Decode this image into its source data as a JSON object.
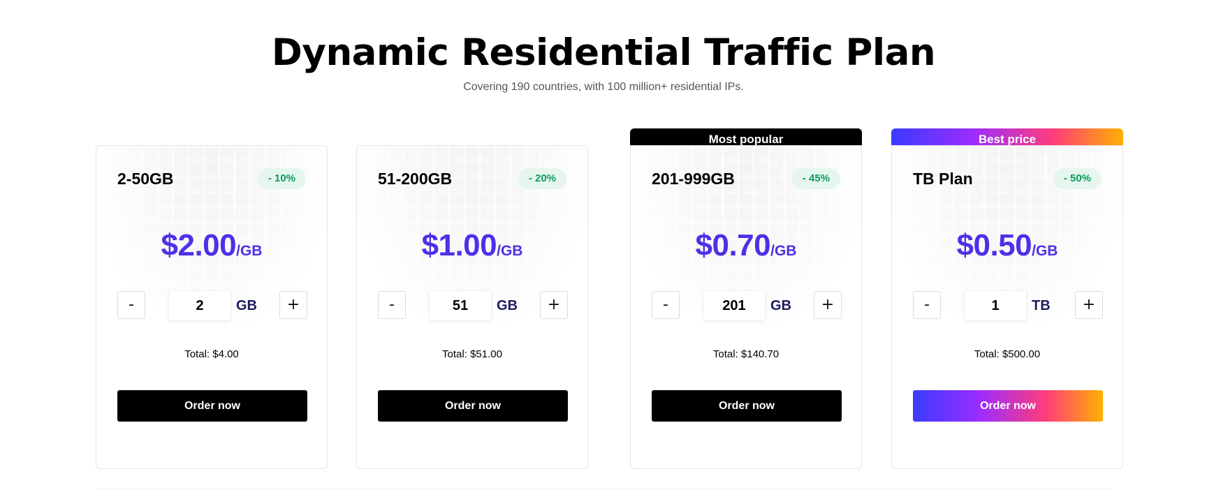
{
  "header": {
    "title": "Dynamic Residential Traffic Plan",
    "subtitle": "Covering 190 countries, with 100 million+ residential IPs."
  },
  "plans": [
    {
      "name": "2-50GB",
      "discount": "- 10%",
      "price": "$2.00",
      "price_unit": "/GB",
      "quantity": "2",
      "quantity_unit": "GB",
      "total": "Total: $4.00",
      "order_label": "Order now",
      "tag": ""
    },
    {
      "name": "51-200GB",
      "discount": "- 20%",
      "price": "$1.00",
      "price_unit": "/GB",
      "quantity": "51",
      "quantity_unit": "GB",
      "total": "Total: $51.00",
      "order_label": "Order now",
      "tag": ""
    },
    {
      "name": "201-999GB",
      "discount": "- 45%",
      "price": "$0.70",
      "price_unit": "/GB",
      "quantity": "201",
      "quantity_unit": "GB",
      "total": "Total: $140.70",
      "order_label": "Order now",
      "tag": "Most popular"
    },
    {
      "name": "TB Plan",
      "discount": "- 50%",
      "price": "$0.50",
      "price_unit": "/GB",
      "quantity": "1",
      "quantity_unit": "TB",
      "total": "Total: $500.00",
      "order_label": "Order now",
      "tag": "Best price"
    }
  ],
  "stepper": {
    "minus": "-",
    "plus": "+"
  },
  "colors": {
    "price": "#4b31e8",
    "discount_text": "#0e9b5a",
    "discount_bg": "#e5f6ee",
    "order_button": "#000000",
    "gradient_start": "#3b3bff",
    "gradient_end": "#ffb100"
  }
}
